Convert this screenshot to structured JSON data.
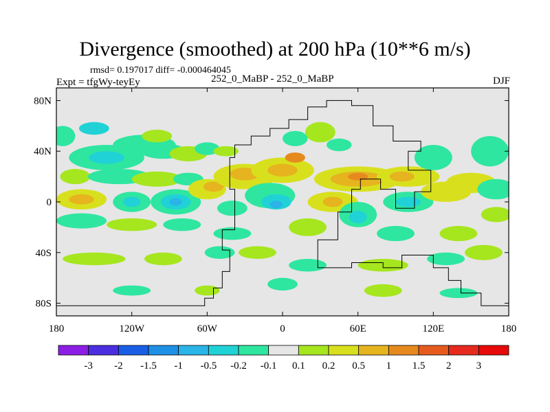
{
  "header": {
    "title": "Divergence (smoothed) at 200 hPa (10**6 m/s)",
    "stats": "rmsd= 0.197017 diff= -0.000464045",
    "expt": "Expt = tfgWy-teyEy",
    "case_pair": "252_0_MaBP - 252_0_MaBP",
    "season": "DJF"
  },
  "chart_data": {
    "type": "heatmap",
    "title": "Divergence (smoothed) at 200 hPa (10**6 m/s)",
    "projection": "cylindrical equidistant",
    "x_range": [
      -180,
      180
    ],
    "y_range": [
      -90,
      90
    ],
    "x_ticks": [
      {
        "value": -180,
        "label": "180"
      },
      {
        "value": -120,
        "label": "120W"
      },
      {
        "value": -60,
        "label": "60W"
      },
      {
        "value": 0,
        "label": "0"
      },
      {
        "value": 60,
        "label": "60E"
      },
      {
        "value": 120,
        "label": "120E"
      },
      {
        "value": 180,
        "label": "180"
      }
    ],
    "y_ticks": [
      {
        "value": 80,
        "label": "80N"
      },
      {
        "value": 40,
        "label": "40N"
      },
      {
        "value": 0,
        "label": "0"
      },
      {
        "value": -40,
        "label": "40S"
      },
      {
        "value": -80,
        "label": "80S"
      }
    ],
    "colorbar": {
      "levels": [
        -3,
        -2,
        -1.5,
        -1,
        -0.5,
        -0.2,
        -0.1,
        0.1,
        0.2,
        0.5,
        1,
        1.5,
        2,
        3
      ],
      "labels": [
        "-3",
        "-2",
        "-1.5",
        "-1",
        "-0.5",
        "-0.2",
        "-0.1",
        "0.1",
        "0.2",
        "0.5",
        "1",
        "1.5",
        "2",
        "3"
      ],
      "colors": [
        "#8c1ee6",
        "#4b2ee0",
        "#1a5ee6",
        "#1e90e6",
        "#2ab4e8",
        "#20d2d6",
        "#2ee6a0",
        "#e6e6e6",
        "#a6e61e",
        "#d8e01e",
        "#e6b41e",
        "#e68a1e",
        "#e65a1e",
        "#e62a1e",
        "#e60a0a"
      ]
    },
    "background_color": "#e6e6e6",
    "blobs": [
      {
        "lon": -175,
        "lat": 52,
        "rlon": 10,
        "rlat": 8,
        "cat": 6
      },
      {
        "lon": -150,
        "lat": 58,
        "rlon": 12,
        "rlat": 5,
        "cat": 5
      },
      {
        "lon": -140,
        "lat": 35,
        "rlon": 30,
        "rlat": 10,
        "cat": 6
      },
      {
        "lon": -140,
        "lat": 35,
        "rlon": 14,
        "rlat": 5,
        "cat": 5
      },
      {
        "lon": -110,
        "lat": 45,
        "rlon": 25,
        "rlat": 8,
        "cat": 6
      },
      {
        "lon": -100,
        "lat": 52,
        "rlon": 12,
        "rlat": 5,
        "cat": 8
      },
      {
        "lon": -95,
        "lat": 40,
        "rlon": 18,
        "rlat": 6,
        "cat": 6
      },
      {
        "lon": -75,
        "lat": 38,
        "rlon": 15,
        "rlat": 6,
        "cat": 8
      },
      {
        "lon": -60,
        "lat": 42,
        "rlon": 10,
        "rlat": 5,
        "cat": 6
      },
      {
        "lon": -45,
        "lat": 40,
        "rlon": 10,
        "rlat": 4,
        "cat": 8
      },
      {
        "lon": -165,
        "lat": 20,
        "rlon": 12,
        "rlat": 6,
        "cat": 8
      },
      {
        "lon": -130,
        "lat": 20,
        "rlon": 25,
        "rlat": 6,
        "cat": 6
      },
      {
        "lon": -100,
        "lat": 18,
        "rlon": 20,
        "rlat": 6,
        "cat": 8
      },
      {
        "lon": -75,
        "lat": 18,
        "rlon": 12,
        "rlat": 5,
        "cat": 6
      },
      {
        "lon": -160,
        "lat": 2,
        "rlon": 20,
        "rlat": 8,
        "cat": 9
      },
      {
        "lon": -160,
        "lat": 2,
        "rlon": 10,
        "rlat": 4,
        "cat": 10
      },
      {
        "lon": -120,
        "lat": 0,
        "rlon": 15,
        "rlat": 8,
        "cat": 6
      },
      {
        "lon": -120,
        "lat": 0,
        "rlon": 7,
        "rlat": 4,
        "cat": 5
      },
      {
        "lon": -85,
        "lat": 0,
        "rlon": 20,
        "rlat": 10,
        "cat": 6
      },
      {
        "lon": -85,
        "lat": 0,
        "rlon": 12,
        "rlat": 6,
        "cat": 5
      },
      {
        "lon": -85,
        "lat": 0,
        "rlon": 5,
        "rlat": 3,
        "cat": 4
      },
      {
        "lon": -60,
        "lat": 10,
        "rlon": 15,
        "rlat": 8,
        "cat": 9
      },
      {
        "lon": -55,
        "lat": 12,
        "rlon": 8,
        "rlat": 4,
        "cat": 10
      },
      {
        "lon": -30,
        "lat": 20,
        "rlon": 25,
        "rlat": 10,
        "cat": 9
      },
      {
        "lon": -30,
        "lat": 22,
        "rlon": 12,
        "rlat": 5,
        "cat": 10
      },
      {
        "lon": 0,
        "lat": 25,
        "rlon": 25,
        "rlat": 10,
        "cat": 9
      },
      {
        "lon": 0,
        "lat": 25,
        "rlon": 12,
        "rlat": 5,
        "cat": 10
      },
      {
        "lon": 10,
        "lat": 35,
        "rlon": 8,
        "rlat": 4,
        "cat": 11
      },
      {
        "lon": -10,
        "lat": 5,
        "rlon": 20,
        "rlat": 10,
        "cat": 6
      },
      {
        "lon": -5,
        "lat": 0,
        "rlon": 12,
        "rlat": 6,
        "cat": 5
      },
      {
        "lon": -5,
        "lat": -2,
        "rlon": 5,
        "rlat": 3,
        "cat": 4
      },
      {
        "lon": -40,
        "lat": -5,
        "rlon": 12,
        "rlat": 6,
        "cat": 6
      },
      {
        "lon": 30,
        "lat": 55,
        "rlon": 12,
        "rlat": 8,
        "cat": 8
      },
      {
        "lon": 10,
        "lat": 50,
        "rlon": 10,
        "rlat": 6,
        "cat": 6
      },
      {
        "lon": 45,
        "lat": 45,
        "rlon": 10,
        "rlat": 5,
        "cat": 6
      },
      {
        "lon": 60,
        "lat": 18,
        "rlon": 35,
        "rlat": 10,
        "cat": 9
      },
      {
        "lon": 60,
        "lat": 18,
        "rlon": 22,
        "rlat": 6,
        "cat": 10
      },
      {
        "lon": 60,
        "lat": 20,
        "rlon": 8,
        "rlat": 3,
        "cat": 11
      },
      {
        "lon": 100,
        "lat": 20,
        "rlon": 25,
        "rlat": 8,
        "cat": 9
      },
      {
        "lon": 95,
        "lat": 20,
        "rlon": 10,
        "rlat": 4,
        "cat": 10
      },
      {
        "lon": 40,
        "lat": 0,
        "rlon": 20,
        "rlat": 8,
        "cat": 9
      },
      {
        "lon": 40,
        "lat": 0,
        "rlon": 8,
        "rlat": 4,
        "cat": 10
      },
      {
        "lon": 60,
        "lat": -10,
        "rlon": 15,
        "rlat": 10,
        "cat": 6
      },
      {
        "lon": 60,
        "lat": -12,
        "rlon": 7,
        "rlat": 5,
        "cat": 5
      },
      {
        "lon": 100,
        "lat": 0,
        "rlon": 20,
        "rlat": 8,
        "cat": 6
      },
      {
        "lon": 100,
        "lat": 0,
        "rlon": 10,
        "rlat": 4,
        "cat": 5
      },
      {
        "lon": 120,
        "lat": 35,
        "rlon": 15,
        "rlat": 10,
        "cat": 6
      },
      {
        "lon": 130,
        "lat": 8,
        "rlon": 20,
        "rlat": 8,
        "cat": 9
      },
      {
        "lon": 150,
        "lat": 15,
        "rlon": 20,
        "rlat": 8,
        "cat": 9
      },
      {
        "lon": 165,
        "lat": 40,
        "rlon": 15,
        "rlat": 12,
        "cat": 6
      },
      {
        "lon": 170,
        "lat": 10,
        "rlon": 15,
        "rlat": 8,
        "cat": 6
      },
      {
        "lon": 170,
        "lat": -10,
        "rlon": 12,
        "rlat": 6,
        "cat": 8
      },
      {
        "lon": -160,
        "lat": -15,
        "rlon": 20,
        "rlat": 6,
        "cat": 6
      },
      {
        "lon": -120,
        "lat": -18,
        "rlon": 20,
        "rlat": 5,
        "cat": 8
      },
      {
        "lon": -80,
        "lat": -18,
        "rlon": 15,
        "rlat": 5,
        "cat": 6
      },
      {
        "lon": -40,
        "lat": -25,
        "rlon": 15,
        "rlat": 5,
        "cat": 6
      },
      {
        "lon": 20,
        "lat": -20,
        "rlon": 15,
        "rlat": 7,
        "cat": 8
      },
      {
        "lon": 90,
        "lat": -25,
        "rlon": 15,
        "rlat": 6,
        "cat": 6
      },
      {
        "lon": 140,
        "lat": -25,
        "rlon": 15,
        "rlat": 6,
        "cat": 8
      },
      {
        "lon": -150,
        "lat": -45,
        "rlon": 25,
        "rlat": 5,
        "cat": 8
      },
      {
        "lon": -95,
        "lat": -45,
        "rlon": 15,
        "rlat": 5,
        "cat": 8
      },
      {
        "lon": -50,
        "lat": -40,
        "rlon": 12,
        "rlat": 5,
        "cat": 6
      },
      {
        "lon": -20,
        "lat": -40,
        "rlon": 15,
        "rlat": 5,
        "cat": 8
      },
      {
        "lon": 20,
        "lat": -50,
        "rlon": 15,
        "rlat": 5,
        "cat": 6
      },
      {
        "lon": 80,
        "lat": -50,
        "rlon": 20,
        "rlat": 5,
        "cat": 8
      },
      {
        "lon": 130,
        "lat": -45,
        "rlon": 15,
        "rlat": 5,
        "cat": 6
      },
      {
        "lon": 160,
        "lat": -40,
        "rlon": 15,
        "rlat": 6,
        "cat": 8
      },
      {
        "lon": -120,
        "lat": -70,
        "rlon": 15,
        "rlat": 4,
        "cat": 6
      },
      {
        "lon": -60,
        "lat": -70,
        "rlon": 10,
        "rlat": 4,
        "cat": 8
      },
      {
        "lon": 0,
        "lat": -65,
        "rlon": 12,
        "rlat": 5,
        "cat": 6
      },
      {
        "lon": 80,
        "lat": -70,
        "rlon": 15,
        "rlat": 5,
        "cat": 8
      },
      {
        "lon": 140,
        "lat": -72,
        "rlon": 15,
        "rlat": 4,
        "cat": 6
      }
    ],
    "coastline": [
      [
        -180,
        -82
      ],
      [
        -62,
        -82
      ],
      [
        -62,
        -76
      ],
      [
        -55,
        -76
      ],
      [
        -55,
        -68
      ],
      [
        -48,
        -68
      ],
      [
        -48,
        -55
      ],
      [
        -42,
        -55
      ],
      [
        -42,
        -38
      ],
      [
        -48,
        -38
      ],
      [
        -48,
        -22
      ],
      [
        -38,
        -22
      ],
      [
        -38,
        10
      ],
      [
        -42,
        10
      ],
      [
        -42,
        35
      ],
      [
        -38,
        35
      ],
      [
        -38,
        45
      ],
      [
        -25,
        45
      ],
      [
        -25,
        52
      ],
      [
        -10,
        52
      ],
      [
        -10,
        58
      ],
      [
        5,
        58
      ],
      [
        5,
        65
      ],
      [
        20,
        65
      ],
      [
        20,
        75
      ],
      [
        35,
        75
      ],
      [
        35,
        80
      ],
      [
        55,
        80
      ],
      [
        55,
        76
      ],
      [
        72,
        76
      ],
      [
        72,
        60
      ],
      [
        88,
        60
      ],
      [
        88,
        48
      ],
      [
        110,
        48
      ],
      [
        110,
        40
      ],
      [
        100,
        40
      ],
      [
        100,
        25
      ],
      [
        118,
        25
      ],
      [
        118,
        8
      ],
      [
        105,
        8
      ],
      [
        105,
        -5
      ],
      [
        90,
        -5
      ],
      [
        90,
        10
      ],
      [
        78,
        10
      ],
      [
        78,
        18
      ],
      [
        62,
        18
      ],
      [
        62,
        10
      ],
      [
        55,
        10
      ],
      [
        55,
        -8
      ],
      [
        44,
        -8
      ],
      [
        44,
        -30
      ],
      [
        28,
        -30
      ],
      [
        28,
        -52
      ],
      [
        55,
        -52
      ],
      [
        55,
        -48
      ],
      [
        80,
        -48
      ],
      [
        80,
        -52
      ],
      [
        95,
        -52
      ],
      [
        95,
        -42
      ],
      [
        120,
        -42
      ],
      [
        120,
        -52
      ],
      [
        132,
        -52
      ],
      [
        132,
        -62
      ],
      [
        142,
        -62
      ],
      [
        142,
        -72
      ],
      [
        158,
        -72
      ],
      [
        158,
        -82
      ],
      [
        180,
        -82
      ]
    ]
  }
}
